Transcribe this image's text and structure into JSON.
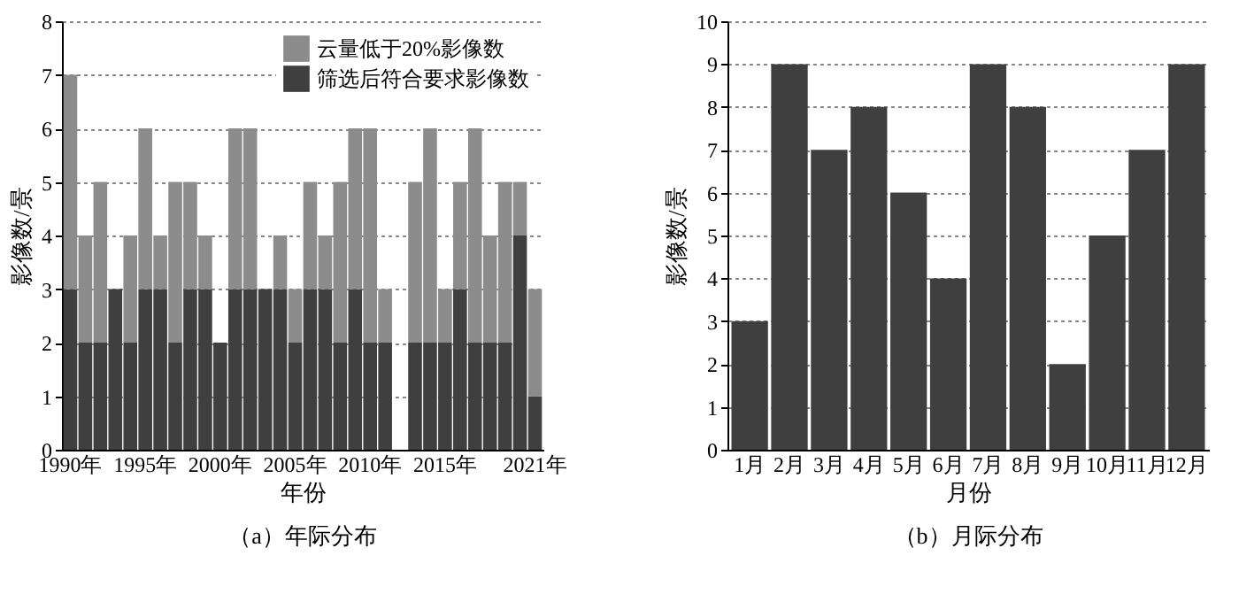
{
  "chart_data": [
    {
      "type": "bar",
      "title": "（a）年际分布",
      "xlabel": "年份",
      "ylabel": "影像数/景",
      "categories": [
        "1990年",
        null,
        null,
        null,
        null,
        "1995年",
        null,
        null,
        null,
        null,
        "2000年",
        null,
        null,
        null,
        null,
        "2005年",
        null,
        null,
        null,
        null,
        "2010年",
        null,
        null,
        null,
        null,
        "2015年",
        null,
        null,
        null,
        null,
        null,
        "2021年"
      ],
      "stacked": true,
      "series": [
        {
          "name": "筛选后符合要求影像数",
          "color": "#3f3f3f",
          "values": [
            3,
            2,
            2,
            3,
            2,
            3,
            3,
            2,
            3,
            3,
            2,
            3,
            3,
            3,
            3,
            2,
            3,
            3,
            2,
            3,
            2,
            2,
            0,
            2,
            2,
            2,
            3,
            2,
            2,
            2,
            4,
            1
          ]
        },
        {
          "name": "云量低于20%影像数",
          "color": "#8c8c8c",
          "values": [
            4,
            2,
            3,
            0,
            2,
            3,
            1,
            3,
            2,
            1,
            0,
            3,
            3,
            0,
            1,
            1,
            2,
            1,
            3,
            3,
            4,
            1,
            0,
            3,
            4,
            1,
            2,
            4,
            2,
            3,
            1,
            2
          ]
        }
      ],
      "ylim": [
        0,
        8
      ],
      "yticks": [
        0,
        1,
        2,
        3,
        4,
        5,
        6,
        7,
        8
      ],
      "grid": "y",
      "legend": "top right"
    },
    {
      "type": "bar",
      "title": "（b）月际分布",
      "xlabel": "月份",
      "ylabel": "影像数/景",
      "categories": [
        "1月",
        "2月",
        "3月",
        "4月",
        "5月",
        "6月",
        "7月",
        "8月",
        "9月",
        "10月",
        "11月",
        "12月"
      ],
      "values": [
        3,
        9,
        7,
        8,
        6,
        4,
        9,
        8,
        2,
        5,
        7,
        9
      ],
      "color": "#3f3f3f",
      "ylim": [
        0,
        10
      ],
      "yticks": [
        0,
        1,
        2,
        3,
        4,
        5,
        6,
        7,
        8,
        9,
        10
      ],
      "grid": "y"
    }
  ]
}
